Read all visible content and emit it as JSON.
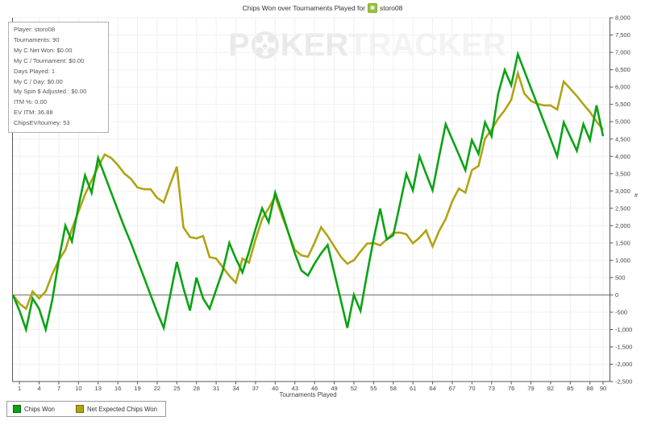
{
  "header": {
    "title_prefix": "Chips Won over Tournaments Played for",
    "player": "storo08",
    "player_icon": "player-avatar-icon"
  },
  "watermark": {
    "left": "P",
    "chip_icon": "poker-chip-icon",
    "spade": "♠",
    "mid": "KER",
    "right": "TRACKER"
  },
  "stats_panel": {
    "lines": [
      "Player: storo08",
      "Tournaments: 90",
      "My C Net Won: $0.00",
      "My C / Tournament: $0.00",
      "Days Played: 1",
      "My C / Day: $0.00",
      "My Spin $ Adjusted : $0.00",
      "ITM %: 0.00",
      "EV ITM: 36.88",
      "ChipsEV/tourney: 53"
    ]
  },
  "chart_data": {
    "type": "line",
    "title": "Chips Won over Tournaments Played for storo08",
    "xlabel": "Tournaments Played",
    "ylabel": "#",
    "x_note": "cumulative chips; index 0 = starting point (0 chips), then tournaments 1..90",
    "x_range": [
      0,
      90
    ],
    "xticks": [
      1,
      4,
      7,
      10,
      13,
      16,
      19,
      22,
      25,
      28,
      31,
      34,
      37,
      40,
      43,
      46,
      49,
      52,
      55,
      58,
      61,
      64,
      67,
      70,
      73,
      76,
      79,
      82,
      85,
      88,
      90
    ],
    "ylim": [
      -2500,
      8000
    ],
    "ytick_step": 500,
    "grid": true,
    "zero_line": true,
    "legend_position": "bottom-left",
    "colors": {
      "grid": "#f0f0f0",
      "zero_line": "#666666",
      "axis": "#555555",
      "tick_text": "#444444"
    },
    "series": [
      {
        "name": "Net Expected Chips Won",
        "color": "#b0a414",
        "values": [
          0,
          -250,
          -400,
          100,
          -100,
          100,
          600,
          1000,
          1300,
          1900,
          2400,
          2900,
          3300,
          3700,
          4050,
          3950,
          3750,
          3500,
          3350,
          3100,
          3050,
          3050,
          2800,
          2670,
          3200,
          3700,
          1950,
          1670,
          1630,
          1700,
          1090,
          1050,
          800,
          550,
          350,
          1050,
          930,
          1600,
          2190,
          2500,
          2840,
          2300,
          1800,
          1300,
          1140,
          1100,
          1500,
          1950,
          1700,
          1400,
          1100,
          900,
          1000,
          1250,
          1480,
          1500,
          1430,
          1600,
          1790,
          1800,
          1750,
          1490,
          1650,
          1860,
          1400,
          1850,
          2190,
          2700,
          3070,
          2950,
          3600,
          3720,
          4510,
          4770,
          5090,
          5330,
          5630,
          6400,
          5810,
          5600,
          5510,
          5470,
          5470,
          5350,
          6160,
          5950,
          5740,
          5500,
          5280,
          5000,
          4770
        ]
      },
      {
        "name": "Chips Won",
        "color": "#0aa314",
        "values": [
          0,
          -450,
          -1000,
          -100,
          -400,
          -1000,
          -150,
          1000,
          2000,
          1550,
          2550,
          3450,
          2950,
          3950,
          3450,
          2950,
          2450,
          1950,
          1500,
          1000,
          500,
          0,
          -500,
          -950,
          0,
          950,
          200,
          -450,
          500,
          -100,
          -400,
          150,
          700,
          1500,
          1050,
          650,
          1250,
          1900,
          2500,
          2100,
          2950,
          2400,
          1800,
          1200,
          700,
          560,
          900,
          1200,
          1440,
          650,
          -150,
          -950,
          0,
          -460,
          600,
          1600,
          2490,
          1600,
          1720,
          2600,
          3490,
          3020,
          4000,
          3500,
          3020,
          4000,
          4930,
          4490,
          4050,
          3600,
          4470,
          4070,
          4980,
          4580,
          5800,
          6490,
          6050,
          6950,
          6460,
          5970,
          5480,
          4990,
          4500,
          4000,
          4980,
          4570,
          4160,
          4930,
          4470,
          5470,
          4580
        ]
      }
    ],
    "legend_order": [
      "Chips Won",
      "Net Expected Chips Won"
    ]
  }
}
